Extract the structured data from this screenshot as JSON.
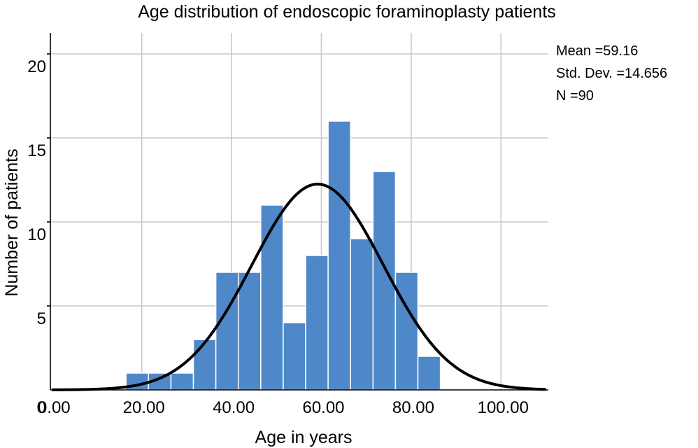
{
  "chart_data": {
    "type": "bar",
    "title": "Age distribution of endoscopic foraminoplasty patients",
    "xlabel": "Age in years",
    "ylabel": "Number of patients",
    "xlim": [
      -5,
      105
    ],
    "ylim": [
      0,
      21
    ],
    "x_ticks": [
      {
        "value": 0,
        "label": "0.00"
      },
      {
        "value": 20,
        "label": "20.00"
      },
      {
        "value": 40,
        "label": "40.00"
      },
      {
        "value": 60,
        "label": "60.00"
      },
      {
        "value": 80,
        "label": "80.00"
      },
      {
        "value": 100,
        "label": "100.00"
      }
    ],
    "y_ticks": [
      {
        "value": 0,
        "label": "0"
      },
      {
        "value": 5,
        "label": "5"
      },
      {
        "value": 10,
        "label": "10"
      },
      {
        "value": 15,
        "label": "15"
      },
      {
        "value": 20,
        "label": "20"
      }
    ],
    "grid": true,
    "bins": [
      {
        "start": 16.5,
        "end": 21.5,
        "count": 1
      },
      {
        "start": 21.5,
        "end": 26.5,
        "count": 1
      },
      {
        "start": 26.5,
        "end": 31.5,
        "count": 1
      },
      {
        "start": 31.5,
        "end": 36.5,
        "count": 3
      },
      {
        "start": 36.5,
        "end": 41.5,
        "count": 7
      },
      {
        "start": 41.5,
        "end": 46.5,
        "count": 7
      },
      {
        "start": 46.5,
        "end": 51.5,
        "count": 11
      },
      {
        "start": 51.5,
        "end": 56.5,
        "count": 4
      },
      {
        "start": 56.5,
        "end": 61.5,
        "count": 8
      },
      {
        "start": 61.5,
        "end": 66.5,
        "count": 16
      },
      {
        "start": 66.5,
        "end": 71.5,
        "count": 9
      },
      {
        "start": 71.5,
        "end": 76.5,
        "count": 13
      },
      {
        "start": 76.5,
        "end": 81.5,
        "count": 7
      },
      {
        "start": 81.5,
        "end": 86.5,
        "count": 2
      }
    ],
    "bar_color": "#4f88c9",
    "normal_curve": {
      "mean": 59.16,
      "std_dev": 14.656,
      "n": 90,
      "bin_width": 5,
      "color": "#000000"
    },
    "stats": [
      {
        "label": "Mean =59.16"
      },
      {
        "label": "Std. Dev. =14.656"
      },
      {
        "label": "N =90"
      }
    ]
  }
}
